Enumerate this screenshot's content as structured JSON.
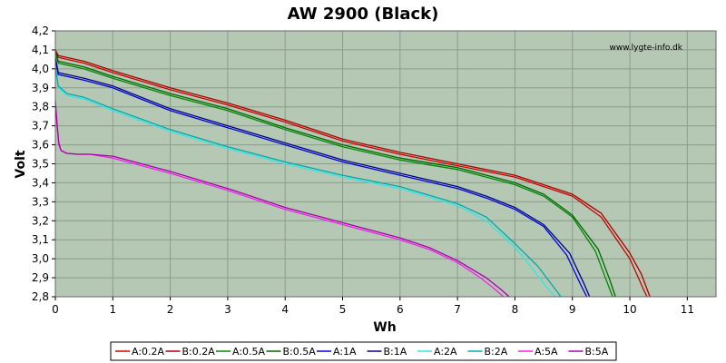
{
  "chart_data": {
    "type": "line",
    "title": "AW 2900 (Black)",
    "xlabel": "Wh",
    "ylabel": "Volt",
    "watermark": "www.lygte-info.dk",
    "xlim": [
      0,
      11.5
    ],
    "ylim": [
      2.8,
      4.2
    ],
    "x_ticks": [
      0,
      1,
      2,
      3,
      4,
      5,
      6,
      7,
      8,
      9,
      10,
      11
    ],
    "x_tick_labels": [
      "0",
      "1",
      "2",
      "3",
      "4",
      "5",
      "6",
      "7",
      "8",
      "9",
      "10",
      "11"
    ],
    "y_ticks": [
      2.8,
      2.9,
      3.0,
      3.1,
      3.2,
      3.3,
      3.4,
      3.5,
      3.6,
      3.7,
      3.8,
      3.9,
      4.0,
      4.1,
      4.2
    ],
    "y_tick_labels": [
      "2,8",
      "2,9",
      "3,0",
      "3,1",
      "3,2",
      "3,3",
      "3,4",
      "3,5",
      "3,6",
      "3,7",
      "3,8",
      "3,9",
      "4,0",
      "4,1",
      "4,2"
    ],
    "grid": true,
    "legend_position": "bottom",
    "colors": {
      "plot_bg": "#b4c8b4",
      "grid": "#8c9c8c",
      "frame": "#666666"
    },
    "series": [
      {
        "name": "A:0.2A",
        "color": "#cc0000",
        "x": [
          0,
          0.05,
          0.5,
          1,
          2,
          3,
          4,
          5,
          6,
          7,
          8,
          9,
          9.5,
          10,
          10.15,
          10.25,
          10.3
        ],
        "y": [
          4.1,
          4.06,
          4.03,
          3.98,
          3.89,
          3.81,
          3.72,
          3.62,
          3.55,
          3.49,
          3.43,
          3.33,
          3.22,
          3.0,
          2.9,
          2.83,
          2.8
        ]
      },
      {
        "name": "B:0.2A",
        "color": "#aa0000",
        "x": [
          0,
          0.05,
          0.5,
          1,
          2,
          3,
          4,
          5,
          6,
          7,
          8,
          9,
          9.5,
          10,
          10.2,
          10.3,
          10.35
        ],
        "y": [
          4.1,
          4.07,
          4.04,
          3.99,
          3.9,
          3.82,
          3.73,
          3.63,
          3.56,
          3.5,
          3.44,
          3.34,
          3.24,
          3.03,
          2.92,
          2.84,
          2.8
        ]
      },
      {
        "name": "A:0.5A",
        "color": "#008800",
        "x": [
          0,
          0.05,
          0.5,
          1,
          2,
          3,
          4,
          5,
          6,
          7,
          8,
          8.5,
          9,
          9.4,
          9.6,
          9.7
        ],
        "y": [
          4.09,
          4.03,
          4.0,
          3.95,
          3.86,
          3.78,
          3.68,
          3.59,
          3.52,
          3.47,
          3.39,
          3.33,
          3.22,
          3.04,
          2.88,
          2.8
        ]
      },
      {
        "name": "B:0.5A",
        "color": "#006600",
        "x": [
          0,
          0.05,
          0.5,
          1,
          2,
          3,
          4,
          5,
          6,
          7,
          8,
          8.5,
          9,
          9.45,
          9.65,
          9.75
        ],
        "y": [
          4.09,
          4.04,
          4.01,
          3.96,
          3.87,
          3.79,
          3.69,
          3.6,
          3.53,
          3.48,
          3.4,
          3.34,
          3.23,
          3.05,
          2.89,
          2.8
        ]
      },
      {
        "name": "A:1A",
        "color": "#0000dd",
        "x": [
          0,
          0.05,
          0.5,
          1,
          2,
          3,
          4,
          5,
          6,
          7,
          7.5,
          8,
          8.5,
          8.9,
          9.15,
          9.25
        ],
        "y": [
          4.05,
          3.97,
          3.94,
          3.9,
          3.78,
          3.69,
          3.6,
          3.51,
          3.44,
          3.37,
          3.32,
          3.26,
          3.17,
          3.02,
          2.86,
          2.8
        ]
      },
      {
        "name": "B:1A",
        "color": "#000088",
        "x": [
          0,
          0.05,
          0.5,
          1,
          2,
          3,
          4,
          5,
          6,
          7,
          7.5,
          8,
          8.5,
          8.95,
          9.2,
          9.3
        ],
        "y": [
          4.06,
          3.98,
          3.95,
          3.91,
          3.79,
          3.7,
          3.61,
          3.52,
          3.45,
          3.38,
          3.33,
          3.27,
          3.18,
          3.03,
          2.87,
          2.8
        ]
      },
      {
        "name": "A:2A",
        "color": "#33e6e6",
        "x": [
          0,
          0.05,
          0.2,
          0.5,
          1,
          2,
          3,
          4,
          5,
          6,
          7,
          7.5,
          8,
          8.3,
          8.55,
          8.7
        ],
        "y": [
          4.0,
          3.9,
          3.86,
          3.84,
          3.78,
          3.67,
          3.58,
          3.5,
          3.43,
          3.37,
          3.28,
          3.2,
          3.06,
          2.95,
          2.85,
          2.8
        ]
      },
      {
        "name": "B:2A",
        "color": "#00aaaa",
        "x": [
          0,
          0.05,
          0.2,
          0.5,
          1,
          2,
          3,
          4,
          5,
          6,
          7,
          7.5,
          8,
          8.4,
          8.65,
          8.8
        ],
        "y": [
          4.01,
          3.91,
          3.87,
          3.85,
          3.79,
          3.68,
          3.59,
          3.51,
          3.44,
          3.38,
          3.29,
          3.22,
          3.08,
          2.96,
          2.86,
          2.8
        ]
      },
      {
        "name": "A:5A",
        "color": "#ee22ee",
        "x": [
          0,
          0.03,
          0.06,
          0.1,
          0.2,
          0.4,
          0.6,
          1,
          2,
          3,
          4,
          5,
          6,
          6.5,
          7,
          7.4,
          7.65,
          7.8
        ],
        "y": [
          3.82,
          3.7,
          3.6,
          3.57,
          3.555,
          3.55,
          3.55,
          3.53,
          3.45,
          3.36,
          3.26,
          3.18,
          3.1,
          3.05,
          2.98,
          2.9,
          2.84,
          2.8
        ]
      },
      {
        "name": "B:5A",
        "color": "#aa00aa",
        "x": [
          0,
          0.03,
          0.06,
          0.1,
          0.2,
          0.4,
          0.6,
          1,
          2,
          3,
          4,
          5,
          6,
          6.5,
          7,
          7.5,
          7.75,
          7.9
        ],
        "y": [
          3.83,
          3.71,
          3.61,
          3.57,
          3.555,
          3.55,
          3.55,
          3.54,
          3.46,
          3.37,
          3.27,
          3.19,
          3.11,
          3.06,
          2.99,
          2.9,
          2.84,
          2.8
        ]
      }
    ]
  }
}
